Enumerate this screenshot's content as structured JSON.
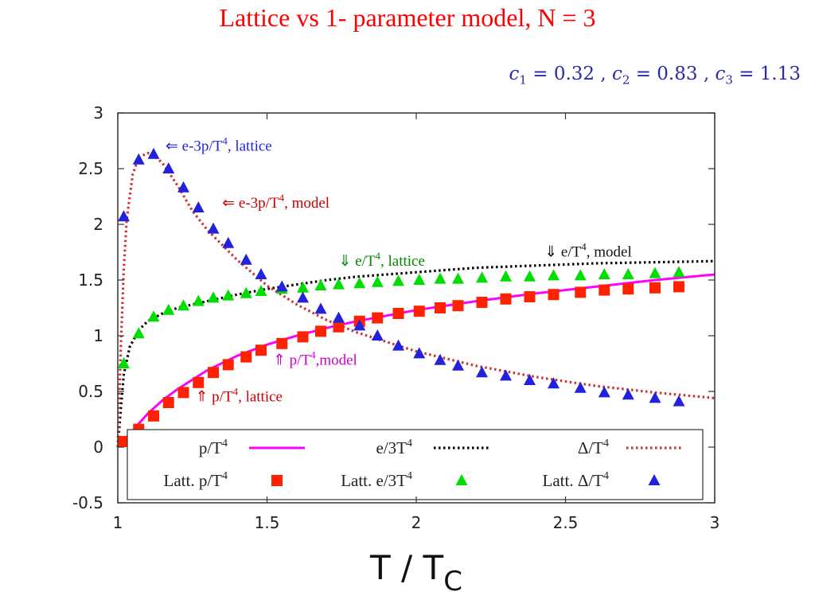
{
  "slide": {
    "title": "Lattice vs 1- parameter model, N = 3",
    "params": {
      "c1_name": "c",
      "c1_sub": "1",
      "c1_value": "= 0.32 ,",
      "c2_name": "c",
      "c2_sub": "2",
      "c2_value": "= 0.83 ,",
      "c3_name": "c",
      "c3_sub": "3",
      "c3_value": "= 1.13"
    }
  },
  "colors": {
    "title": "#ff0000",
    "params": "#2a2aa8",
    "pressure": "#ff00ff",
    "energy": "#000000",
    "delta": "#cc3333",
    "latt_p": "#ff2200",
    "latt_e": "#00dd00",
    "latt_delta": "#2222dd"
  },
  "chart_data": {
    "type": "scatter",
    "title": "",
    "xlabel": "T / T",
    "xlabel_sub": "C",
    "ylabel": "",
    "xlim": [
      1,
      3
    ],
    "ylim": [
      -0.5,
      3
    ],
    "xticks": [
      1,
      1.5,
      2,
      2.5,
      3
    ],
    "xtick_labels": [
      "1",
      "1.5",
      "2",
      "2.5",
      "3"
    ],
    "yticks": [
      -0.5,
      0,
      0.5,
      1,
      1.5,
      2,
      2.5,
      3
    ],
    "ytick_labels": [
      "-0.5",
      "0",
      "0.5",
      "1",
      "1.5",
      "2",
      "2.5",
      "3"
    ],
    "grid": false,
    "legend_position": "bottom",
    "series": [
      {
        "name": "p/T⁴",
        "kind": "line",
        "style": "solid",
        "color": "#ff00ff",
        "x": [
          1.0,
          1.02,
          1.05,
          1.1,
          1.15,
          1.2,
          1.3,
          1.4,
          1.5,
          1.6,
          1.7,
          1.8,
          1.9,
          2.0,
          2.2,
          2.4,
          2.6,
          2.8,
          3.0
        ],
        "y": [
          0.0,
          0.06,
          0.15,
          0.3,
          0.42,
          0.52,
          0.69,
          0.82,
          0.92,
          1.0,
          1.07,
          1.13,
          1.18,
          1.23,
          1.31,
          1.38,
          1.44,
          1.5,
          1.55
        ]
      },
      {
        "name": "e/3T⁴",
        "kind": "line",
        "style": "dotted",
        "color": "#000000",
        "x": [
          1.0,
          1.01,
          1.02,
          1.04,
          1.07,
          1.1,
          1.15,
          1.2,
          1.3,
          1.4,
          1.5,
          1.6,
          1.7,
          1.8,
          2.0,
          2.2,
          2.4,
          2.6,
          2.8,
          3.0
        ],
        "y": [
          0.0,
          0.35,
          0.65,
          0.9,
          1.05,
          1.13,
          1.2,
          1.25,
          1.31,
          1.37,
          1.42,
          1.46,
          1.5,
          1.53,
          1.57,
          1.61,
          1.63,
          1.65,
          1.66,
          1.67
        ]
      },
      {
        "name": "Δ/T⁴",
        "kind": "line",
        "style": "dotted",
        "color": "#cc3333",
        "x": [
          1.0,
          1.01,
          1.02,
          1.03,
          1.05,
          1.07,
          1.1,
          1.12,
          1.15,
          1.2,
          1.25,
          1.3,
          1.4,
          1.5,
          1.6,
          1.7,
          1.8,
          2.0,
          2.2,
          2.4,
          2.6,
          2.8,
          3.0
        ],
        "y": [
          0.0,
          0.9,
          1.6,
          2.05,
          2.45,
          2.6,
          2.64,
          2.62,
          2.55,
          2.35,
          2.12,
          1.95,
          1.68,
          1.45,
          1.28,
          1.14,
          1.03,
          0.86,
          0.73,
          0.63,
          0.55,
          0.49,
          0.44
        ]
      },
      {
        "name": "Latt. p/T⁴",
        "kind": "points",
        "marker": "square",
        "color": "#ff2200",
        "x": [
          1.02,
          1.07,
          1.12,
          1.17,
          1.22,
          1.27,
          1.32,
          1.37,
          1.43,
          1.48,
          1.55,
          1.62,
          1.68,
          1.74,
          1.81,
          1.87,
          1.94,
          2.01,
          2.08,
          2.14,
          2.22,
          2.3,
          2.38,
          2.46,
          2.55,
          2.63,
          2.71,
          2.8,
          2.88
        ],
        "y": [
          0.05,
          0.16,
          0.28,
          0.4,
          0.49,
          0.58,
          0.67,
          0.74,
          0.81,
          0.87,
          0.93,
          0.99,
          1.04,
          1.08,
          1.13,
          1.16,
          1.2,
          1.22,
          1.25,
          1.27,
          1.3,
          1.33,
          1.35,
          1.37,
          1.39,
          1.41,
          1.42,
          1.43,
          1.44
        ]
      },
      {
        "name": "Latt. e/3T⁴",
        "kind": "points",
        "marker": "triangle",
        "color": "#00dd00",
        "x": [
          1.02,
          1.07,
          1.12,
          1.17,
          1.22,
          1.27,
          1.32,
          1.37,
          1.43,
          1.48,
          1.55,
          1.62,
          1.68,
          1.74,
          1.81,
          1.87,
          1.94,
          2.01,
          2.08,
          2.14,
          2.22,
          2.3,
          2.38,
          2.46,
          2.55,
          2.63,
          2.71,
          2.8,
          2.88
        ],
        "y": [
          0.75,
          1.02,
          1.17,
          1.23,
          1.27,
          1.31,
          1.34,
          1.36,
          1.38,
          1.4,
          1.42,
          1.43,
          1.45,
          1.46,
          1.47,
          1.48,
          1.49,
          1.5,
          1.51,
          1.51,
          1.52,
          1.53,
          1.53,
          1.54,
          1.54,
          1.55,
          1.55,
          1.56,
          1.57
        ]
      },
      {
        "name": "Latt. Δ/T⁴",
        "kind": "points",
        "marker": "triangle",
        "color": "#2222dd",
        "x": [
          1.02,
          1.07,
          1.12,
          1.17,
          1.22,
          1.27,
          1.32,
          1.37,
          1.43,
          1.48,
          1.55,
          1.62,
          1.68,
          1.74,
          1.81,
          1.87,
          1.94,
          2.01,
          2.08,
          2.14,
          2.22,
          2.3,
          2.38,
          2.46,
          2.55,
          2.63,
          2.71,
          2.8,
          2.88
        ],
        "y": [
          2.07,
          2.58,
          2.63,
          2.5,
          2.33,
          2.15,
          1.96,
          1.83,
          1.68,
          1.55,
          1.44,
          1.34,
          1.24,
          1.16,
          1.09,
          1.0,
          0.91,
          0.84,
          0.78,
          0.73,
          0.67,
          0.64,
          0.6,
          0.57,
          0.53,
          0.49,
          0.47,
          0.44,
          0.41
        ]
      }
    ],
    "annotations": [
      {
        "prefix": "⇐ e-3p/T",
        "sup": "4",
        "suffix": ", lattice",
        "color": "#2222dd",
        "x": 1.16,
        "y": 2.66
      },
      {
        "prefix": "⇐ e-3p/T",
        "sup": "4",
        "suffix": ", model",
        "color": "#cc0000",
        "x": 1.35,
        "y": 2.15
      },
      {
        "prefix": "⇓ e/T",
        "sup": "4",
        "suffix": ", lattice",
        "color": "#008800",
        "x": 1.74,
        "y": 1.63
      },
      {
        "prefix": "⇓ e/T",
        "sup": "4",
        "suffix": ", model",
        "color": "#111111",
        "x": 2.43,
        "y": 1.71
      },
      {
        "prefix": "⇑ p/T",
        "sup": "4",
        "suffix": ",model",
        "color": "#cc00cc",
        "x": 1.52,
        "y": 0.74
      },
      {
        "prefix": "⇑ p/T",
        "sup": "4",
        "suffix": ", lattice",
        "color": "#cc0000",
        "x": 1.26,
        "y": 0.41
      }
    ],
    "legend": [
      {
        "prefix": "p/T",
        "sup": "4",
        "series": 0
      },
      {
        "prefix": "e/3T",
        "sup": "4",
        "series": 1
      },
      {
        "prefix": "Δ/T",
        "sup": "4",
        "series": 2
      },
      {
        "prefix": "Latt. p/T",
        "sup": "4",
        "series": 3
      },
      {
        "prefix": "Latt. e/3T",
        "sup": "4",
        "series": 4
      },
      {
        "prefix": "Latt. Δ/T",
        "sup": "4",
        "series": 5
      }
    ]
  }
}
